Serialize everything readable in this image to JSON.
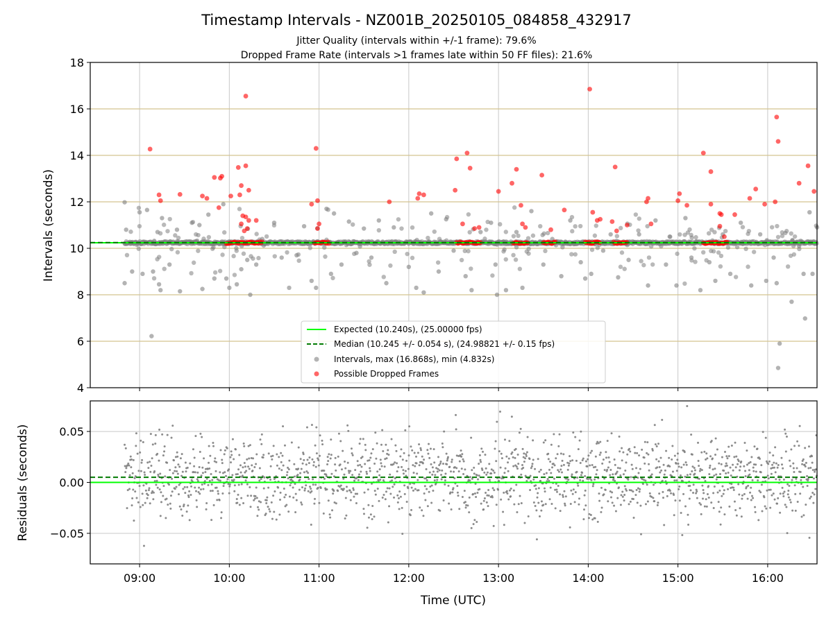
{
  "chart_data": {
    "type": "scatter",
    "title": "Timestamp Intervals - NZ001B_20250105_084858_432917",
    "subtitle_lines": [
      "Jitter Quality (intervals within +/-1 frame): 79.6%",
      "Dropped Frame Rate (intervals >1 frames late within 50 FF files): 21.6%"
    ],
    "xlabel": "Time (UTC)",
    "x_ticks": [
      "09:00",
      "10:00",
      "11:00",
      "12:00",
      "13:00",
      "14:00",
      "15:00",
      "16:00"
    ],
    "x_range": [
      "08:27",
      "16:33"
    ],
    "top_panel": {
      "ylabel": "Intervals (seconds)",
      "ylim": [
        4,
        18
      ],
      "y_ticks": [
        "4",
        "6",
        "8",
        "10",
        "12",
        "14",
        "16",
        "18"
      ],
      "expected": 10.24,
      "median": 10.245,
      "horizontal_grid": [
        6,
        8,
        10,
        12,
        14,
        16
      ],
      "grid_color": "#d4c48f",
      "legend": {
        "placement": "lower center",
        "entries": [
          "Expected (10.240s), (25.00000 fps)",
          "Median (10.245 +/- 0.054 s), (24.98821 +/- 0.15 fps)",
          "Intervals, max (16.868s), min (4.832s)",
          "Possible Dropped Frames"
        ]
      },
      "dropped_frames": [
        [
          "09:07",
          14.27
        ],
        [
          "09:13",
          12.3
        ],
        [
          "09:14",
          12.05
        ],
        [
          "09:27",
          12.32
        ],
        [
          "09:42",
          12.25
        ],
        [
          "09:45",
          12.15
        ],
        [
          "09:50",
          13.05
        ],
        [
          "09:54",
          13.02
        ],
        [
          "09:55",
          13.1
        ],
        [
          "09:53",
          11.75
        ],
        [
          "10:01",
          12.25
        ],
        [
          "10:06",
          13.48
        ],
        [
          "10:07",
          12.3
        ],
        [
          "10:08",
          12.7
        ],
        [
          "10:09",
          11.4
        ],
        [
          "10:08",
          11.05
        ],
        [
          "10:10",
          10.75
        ],
        [
          "10:11",
          13.55
        ],
        [
          "10:11",
          11.35
        ],
        [
          "10:13",
          12.5
        ],
        [
          "10:13",
          11.2
        ],
        [
          "10:18",
          11.2
        ],
        [
          "10:12",
          10.85
        ],
        [
          "10:11",
          16.55
        ],
        [
          "10:58",
          14.3
        ],
        [
          "10:59",
          12.05
        ],
        [
          "10:55",
          11.9
        ],
        [
          "11:00",
          11.05
        ],
        [
          "10:59",
          10.85
        ],
        [
          "11:47",
          12.0
        ],
        [
          "12:06",
          12.15
        ],
        [
          "12:07",
          12.35
        ],
        [
          "12:10",
          12.3
        ],
        [
          "12:32",
          13.85
        ],
        [
          "12:31",
          12.5
        ],
        [
          "12:36",
          11.05
        ],
        [
          "12:39",
          14.1
        ],
        [
          "12:41",
          13.45
        ],
        [
          "12:44",
          10.85
        ],
        [
          "12:47",
          10.9
        ],
        [
          "13:00",
          12.45
        ],
        [
          "13:09",
          12.8
        ],
        [
          "13:12",
          13.4
        ],
        [
          "13:15",
          11.85
        ],
        [
          "13:16",
          11.05
        ],
        [
          "13:18",
          10.9
        ],
        [
          "13:29",
          13.15
        ],
        [
          "13:35",
          10.8
        ],
        [
          "13:44",
          11.65
        ],
        [
          "14:01",
          16.85
        ],
        [
          "14:03",
          11.55
        ],
        [
          "14:06",
          11.2
        ],
        [
          "14:08",
          11.25
        ],
        [
          "14:18",
          13.5
        ],
        [
          "14:16",
          11.15
        ],
        [
          "14:19",
          10.75
        ],
        [
          "14:26",
          11.0
        ],
        [
          "14:39",
          12.0
        ],
        [
          "14:40",
          12.15
        ],
        [
          "14:42",
          11.05
        ],
        [
          "15:00",
          12.05
        ],
        [
          "15:01",
          12.35
        ],
        [
          "15:06",
          11.85
        ],
        [
          "15:17",
          14.1
        ],
        [
          "15:22",
          13.3
        ],
        [
          "15:22",
          11.9
        ],
        [
          "15:28",
          11.5
        ],
        [
          "15:28",
          10.95
        ],
        [
          "15:29",
          11.45
        ],
        [
          "15:31",
          10.5
        ],
        [
          "15:38",
          11.45
        ],
        [
          "15:48",
          12.15
        ],
        [
          "15:52",
          12.55
        ],
        [
          "15:58",
          11.9
        ],
        [
          "16:05",
          12.0
        ],
        [
          "16:06",
          15.65
        ],
        [
          "16:07",
          14.6
        ],
        [
          "16:21",
          12.8
        ],
        [
          "16:27",
          13.55
        ],
        [
          "16:31",
          12.45
        ]
      ],
      "intervals_sample": [
        [
          "08:50",
          11.98
        ],
        [
          "08:51",
          10.8
        ],
        [
          "08:50",
          8.5
        ],
        [
          "08:55",
          9.0
        ],
        [
          "09:00",
          11.55
        ],
        [
          "09:02",
          8.9
        ],
        [
          "09:05",
          11.65
        ],
        [
          "09:08",
          6.22
        ],
        [
          "09:09",
          9.0
        ],
        [
          "09:12",
          10.7
        ],
        [
          "09:13",
          8.45
        ],
        [
          "09:14",
          8.2
        ],
        [
          "09:15",
          11.3
        ],
        [
          "09:20",
          9.3
        ],
        [
          "09:25",
          10.8
        ],
        [
          "09:27",
          8.15
        ],
        [
          "09:35",
          11.1
        ],
        [
          "09:40",
          11.0
        ],
        [
          "09:42",
          8.25
        ],
        [
          "09:46",
          11.45
        ],
        [
          "09:50",
          8.7
        ],
        [
          "09:56",
          11.9
        ],
        [
          "09:58",
          8.7
        ],
        [
          "10:00",
          8.3
        ],
        [
          "10:05",
          8.45
        ],
        [
          "10:08",
          9.1
        ],
        [
          "10:12",
          9.5
        ],
        [
          "10:14",
          8.0
        ],
        [
          "10:18",
          9.3
        ],
        [
          "10:22",
          10.4
        ],
        [
          "10:30",
          11.1
        ],
        [
          "10:35",
          9.6
        ],
        [
          "10:40",
          8.3
        ],
        [
          "10:45",
          9.7
        ],
        [
          "10:50",
          10.95
        ],
        [
          "10:55",
          8.6
        ],
        [
          "10:58",
          8.3
        ],
        [
          "11:05",
          11.7
        ],
        [
          "11:08",
          8.9
        ],
        [
          "11:10",
          11.5
        ],
        [
          "11:15",
          9.3
        ],
        [
          "11:20",
          11.15
        ],
        [
          "11:25",
          9.8
        ],
        [
          "11:30",
          10.85
        ],
        [
          "11:35",
          9.6
        ],
        [
          "11:40",
          11.2
        ],
        [
          "11:45",
          8.5
        ],
        [
          "11:50",
          10.9
        ],
        [
          "12:00",
          9.2
        ],
        [
          "12:05",
          8.3
        ],
        [
          "12:10",
          8.1
        ],
        [
          "12:15",
          11.5
        ],
        [
          "12:20",
          9.0
        ],
        [
          "12:25",
          11.25
        ],
        [
          "12:30",
          9.9
        ],
        [
          "12:38",
          8.8
        ],
        [
          "12:42",
          8.2
        ],
        [
          "12:48",
          10.7
        ],
        [
          "12:55",
          11.1
        ],
        [
          "12:58",
          9.3
        ],
        [
          "12:59",
          8.0
        ],
        [
          "13:05",
          8.2
        ],
        [
          "13:12",
          10.7
        ],
        [
          "13:16",
          8.3
        ],
        [
          "13:22",
          11.6
        ],
        [
          "13:30",
          9.3
        ],
        [
          "13:36",
          10.4
        ],
        [
          "13:42",
          8.8
        ],
        [
          "13:48",
          11.2
        ],
        [
          "13:55",
          9.4
        ],
        [
          "13:58",
          8.7
        ],
        [
          "14:02",
          8.9
        ],
        [
          "14:10",
          9.9
        ],
        [
          "14:15",
          10.6
        ],
        [
          "14:20",
          8.75
        ],
        [
          "14:27",
          9.5
        ],
        [
          "14:34",
          10.6
        ],
        [
          "14:40",
          8.4
        ],
        [
          "14:45",
          11.2
        ],
        [
          "14:52",
          9.3
        ],
        [
          "14:59",
          8.4
        ],
        [
          "15:05",
          11.3
        ],
        [
          "15:09",
          9.6
        ],
        [
          "15:15",
          8.2
        ],
        [
          "15:21",
          9.4
        ],
        [
          "15:25",
          8.6
        ],
        [
          "15:30",
          10.6
        ],
        [
          "15:35",
          8.9
        ],
        [
          "15:42",
          11.1
        ],
        [
          "15:49",
          8.4
        ],
        [
          "15:55",
          10.6
        ],
        [
          "15:59",
          8.6
        ],
        [
          "16:04",
          9.6
        ],
        [
          "16:06",
          8.5
        ],
        [
          "16:07",
          4.85
        ],
        [
          "16:08",
          5.9
        ],
        [
          "16:16",
          7.7
        ],
        [
          "16:21",
          10.1
        ],
        [
          "16:24",
          8.9
        ],
        [
          "16:25",
          6.98
        ],
        [
          "16:28",
          11.55
        ],
        [
          "16:30",
          8.9
        ],
        [
          "16:33",
          10.9
        ]
      ]
    },
    "bottom_panel": {
      "ylabel": "Residuals (seconds)",
      "ylim": [
        -0.08,
        0.08
      ],
      "y_ticks": [
        "0.05",
        "0.00",
        "−0.05"
      ],
      "expected": 0.0,
      "median": 0.005,
      "residual_mean": 0.005,
      "residual_spread": 0.02
    },
    "colors": {
      "expected_line": "#00ff00",
      "median_line": "#007a00",
      "intervals": "#808080",
      "dropped": "#ff0000",
      "vertical_grid": "#c8c8c8"
    }
  }
}
